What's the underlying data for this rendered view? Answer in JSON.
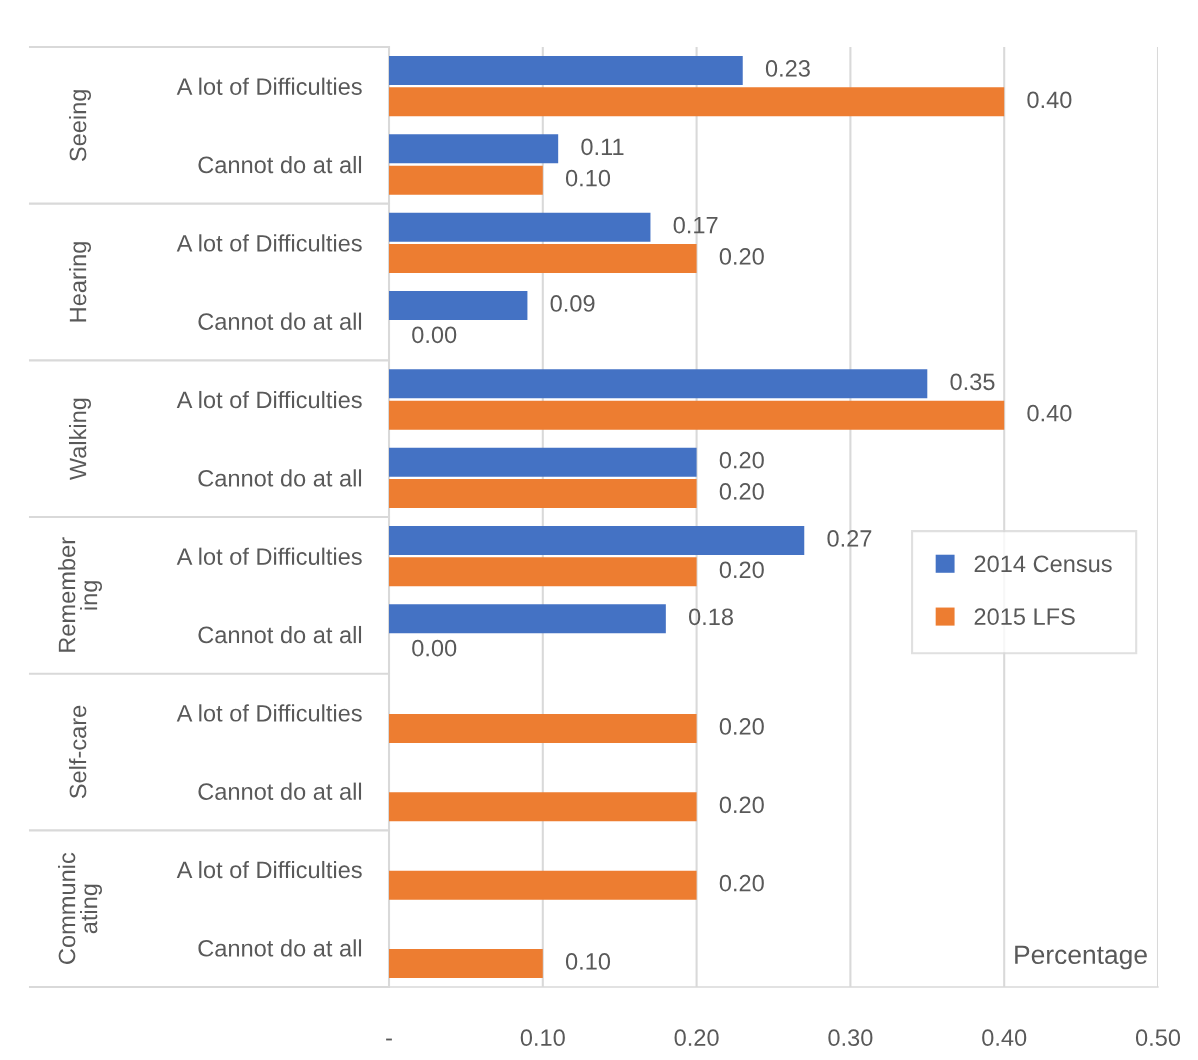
{
  "chart_data": {
    "type": "bar",
    "orientation": "horizontal",
    "xlabel": "Percentage",
    "categories": [
      "A lot of Difficulties",
      "Cannot do at all",
      "A lot of Difficulties",
      "Cannot do at all",
      "A lot of Difficulties",
      "Cannot do at all",
      "A lot of Difficulties",
      "Cannot do at all",
      "A lot of Difficulties",
      "Cannot do at all",
      "A lot of Difficulties",
      "Cannot do at all"
    ],
    "annotations": [
      "Seeing",
      "Hearing",
      "Walking",
      "Remember\ning",
      "Self-care",
      "Communic\nating"
    ],
    "series": [
      {
        "name": "2014 Census",
        "color": "#4472c4",
        "values": [
          0.23,
          0.11,
          0.17,
          0.09,
          0.35,
          0.2,
          0.27,
          0.18,
          null,
          null,
          null,
          null
        ],
        "value_labels": [
          "0.23",
          "0.11",
          "0.17",
          "0.09",
          "0.35",
          "0.20",
          "0.27",
          "0.18",
          null,
          null,
          null,
          null
        ]
      },
      {
        "name": "2015 LFS",
        "color": "#ed7d31",
        "values": [
          0.4,
          0.1,
          0.2,
          0.0,
          0.4,
          0.2,
          0.2,
          0.0,
          0.2,
          0.2,
          0.2,
          0.1
        ],
        "value_labels": [
          "0.40",
          "0.10",
          "0.20",
          "0.00",
          "0.40",
          "0.20",
          "0.20",
          "0.00",
          "0.20",
          "0.20",
          "0.20",
          "0.10"
        ]
      }
    ],
    "xlim": [
      0,
      0.5
    ],
    "xticks": [
      {
        "value": 0,
        "label": "-"
      },
      {
        "value": 0.1,
        "label": "0.10"
      },
      {
        "value": 0.2,
        "label": "0.20"
      },
      {
        "value": 0.3,
        "label": "0.30"
      },
      {
        "value": 0.4,
        "label": "0.40"
      },
      {
        "value": 0.5,
        "label": "0.50"
      }
    ],
    "grid": "x",
    "legend": "right"
  }
}
